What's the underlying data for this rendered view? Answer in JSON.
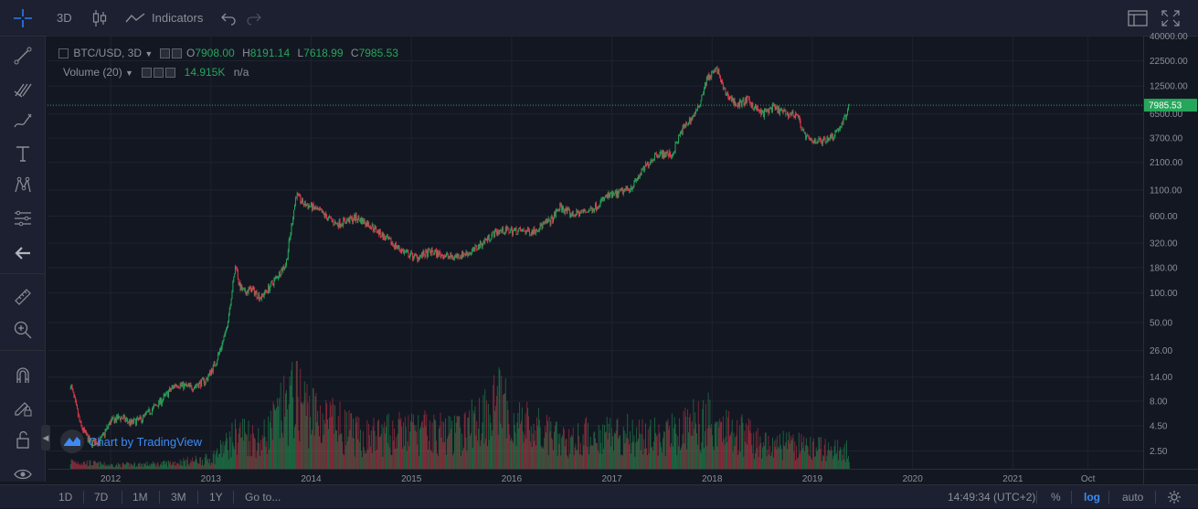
{
  "toolbar": {
    "interval": "3D",
    "indicators_label": "Indicators"
  },
  "legend": {
    "symbol": "BTC/USD, 3D",
    "o_label": "O",
    "o_value": "7908.00",
    "h_label": "H",
    "h_value": "8191.14",
    "l_label": "L",
    "l_value": "7618.99",
    "c_label": "C",
    "c_value": "7985.53",
    "volume_label": "Volume (20)",
    "volume_value": "14.915K",
    "volume_ma": "n/a"
  },
  "watermark": "Chart by TradingView",
  "bottom": {
    "ranges": [
      "1D",
      "7D",
      "1M",
      "3M",
      "1Y"
    ],
    "goto": "Go to...",
    "time": "14:49:34 (UTC+2)",
    "percent": "%",
    "log": "log",
    "auto": "auto"
  },
  "colors": {
    "up": "#26a65b",
    "down": "#e0394d",
    "background": "#131722",
    "last_price": "#26a65b"
  },
  "chart_data": {
    "type": "line",
    "series": [
      {
        "name": "BTC/USD, 3D",
        "x": [
          2011.6,
          2011.7,
          2011.8,
          2011.9,
          2012.0,
          2012.1,
          2012.2,
          2012.3,
          2012.5,
          2012.65,
          2012.8,
          2012.95,
          2013.05,
          2013.15,
          2013.25,
          2013.28,
          2013.33,
          2013.4,
          2013.5,
          2013.6,
          2013.75,
          2013.85,
          2013.92,
          2014.0,
          2014.1,
          2014.25,
          2014.45,
          2014.6,
          2014.75,
          2014.95,
          2015.05,
          2015.2,
          2015.4,
          2015.6,
          2015.75,
          2015.85,
          2015.95,
          2016.2,
          2016.4,
          2016.48,
          2016.6,
          2016.8,
          2016.95,
          2017.05,
          2017.2,
          2017.35,
          2017.45,
          2017.6,
          2017.7,
          2017.85,
          2017.95,
          2018.05,
          2018.12,
          2018.25,
          2018.35,
          2018.5,
          2018.6,
          2018.75,
          2018.85,
          2018.92,
          2018.97,
          2019.1,
          2019.2,
          2019.3,
          2019.37
        ],
        "values": [
          12,
          4.5,
          3,
          3.2,
          5,
          5.5,
          4.8,
          5.2,
          8,
          12,
          11,
          13,
          20,
          40,
          200,
          120,
          100,
          110,
          90,
          120,
          200,
          1000,
          800,
          750,
          650,
          500,
          580,
          480,
          350,
          250,
          230,
          260,
          230,
          260,
          350,
          420,
          430,
          420,
          550,
          750,
          620,
          700,
          950,
          1000,
          1200,
          2000,
          2600,
          2500,
          4500,
          7000,
          15000,
          18500,
          11000,
          8000,
          9000,
          6500,
          7500,
          6500,
          6400,
          4000,
          3500,
          3500,
          3900,
          5200,
          7985.53
        ]
      },
      {
        "name": "Volume (20)",
        "x": [
          2011.6,
          2012.0,
          2012.5,
          2013.0,
          2013.3,
          2013.5,
          2013.85,
          2014.0,
          2014.5,
          2015.0,
          2015.5,
          2015.85,
          2016.0,
          2016.5,
          2017.0,
          2017.5,
          2017.95,
          2018.1,
          2018.5,
          2018.9,
          2019.2,
          2019.37
        ],
        "values": [
          6,
          3,
          4,
          8,
          30,
          22,
          60,
          45,
          25,
          30,
          28,
          55,
          40,
          22,
          30,
          25,
          40,
          35,
          20,
          18,
          15,
          14.915
        ]
      }
    ],
    "x_ticks": [
      "2012",
      "2013",
      "2014",
      "2015",
      "2016",
      "2017",
      "2018",
      "2019",
      "2020",
      "2021",
      "Oct"
    ],
    "x_tick_values": [
      2012,
      2013,
      2014,
      2015,
      2016,
      2017,
      2018,
      2019,
      2020,
      2021,
      2021.75
    ],
    "xlim": [
      2011.37,
      2022.3
    ],
    "y_ticks": [
      "40000.00",
      "22500.00",
      "12500.00",
      "6500.00",
      "3700.00",
      "2100.00",
      "1100.00",
      "600.00",
      "320.00",
      "180.00",
      "100.00",
      "50.00",
      "26.00",
      "14.00",
      "8.00",
      "4.50",
      "2.50"
    ],
    "y_tick_values": [
      40000,
      22500,
      12500,
      6500,
      3700,
      2100,
      1100,
      600,
      320,
      180,
      100,
      50,
      26,
      14,
      8,
      4.5,
      2.5
    ],
    "ylim": [
      1.5,
      42000
    ],
    "y_scale": "log",
    "last_price": 7985.53,
    "last_price_label": "7985.53",
    "grid": true
  }
}
